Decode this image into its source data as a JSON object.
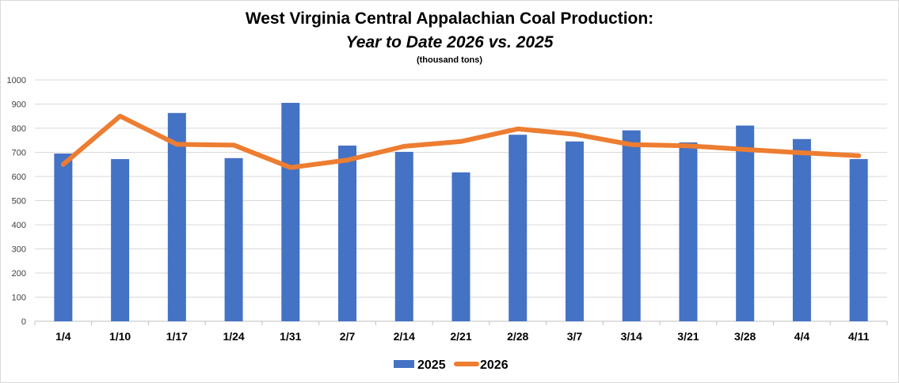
{
  "chart_data": {
    "type": "bar",
    "title": "West Virginia Central Appalachian Coal Production:",
    "subtitle": "Year to Date 2026 vs. 2025",
    "units_note": "(thousand tons)",
    "xlabel": "",
    "ylabel": "",
    "ylim": [
      0,
      1000
    ],
    "yticks": [
      0,
      100,
      200,
      300,
      400,
      500,
      600,
      700,
      800,
      900,
      1000
    ],
    "grid": true,
    "legend_position": "bottom",
    "categories": [
      "1/4",
      "1/10",
      "1/17",
      "1/24",
      "1/31",
      "2/7",
      "2/14",
      "2/21",
      "2/28",
      "3/7",
      "3/14",
      "3/21",
      "3/28",
      "4/4",
      "4/11"
    ],
    "series": [
      {
        "name": "2025",
        "type": "bar",
        "color": "#4472C4",
        "values": [
          695,
          672,
          863,
          676,
          905,
          728,
          702,
          617,
          773,
          745,
          791,
          741,
          811,
          755,
          672
        ]
      },
      {
        "name": "2026",
        "type": "line",
        "color": "#ED7D31",
        "values": [
          650,
          850,
          733,
          730,
          637,
          668,
          725,
          745,
          797,
          775,
          732,
          727,
          712,
          698,
          686
        ]
      }
    ]
  }
}
